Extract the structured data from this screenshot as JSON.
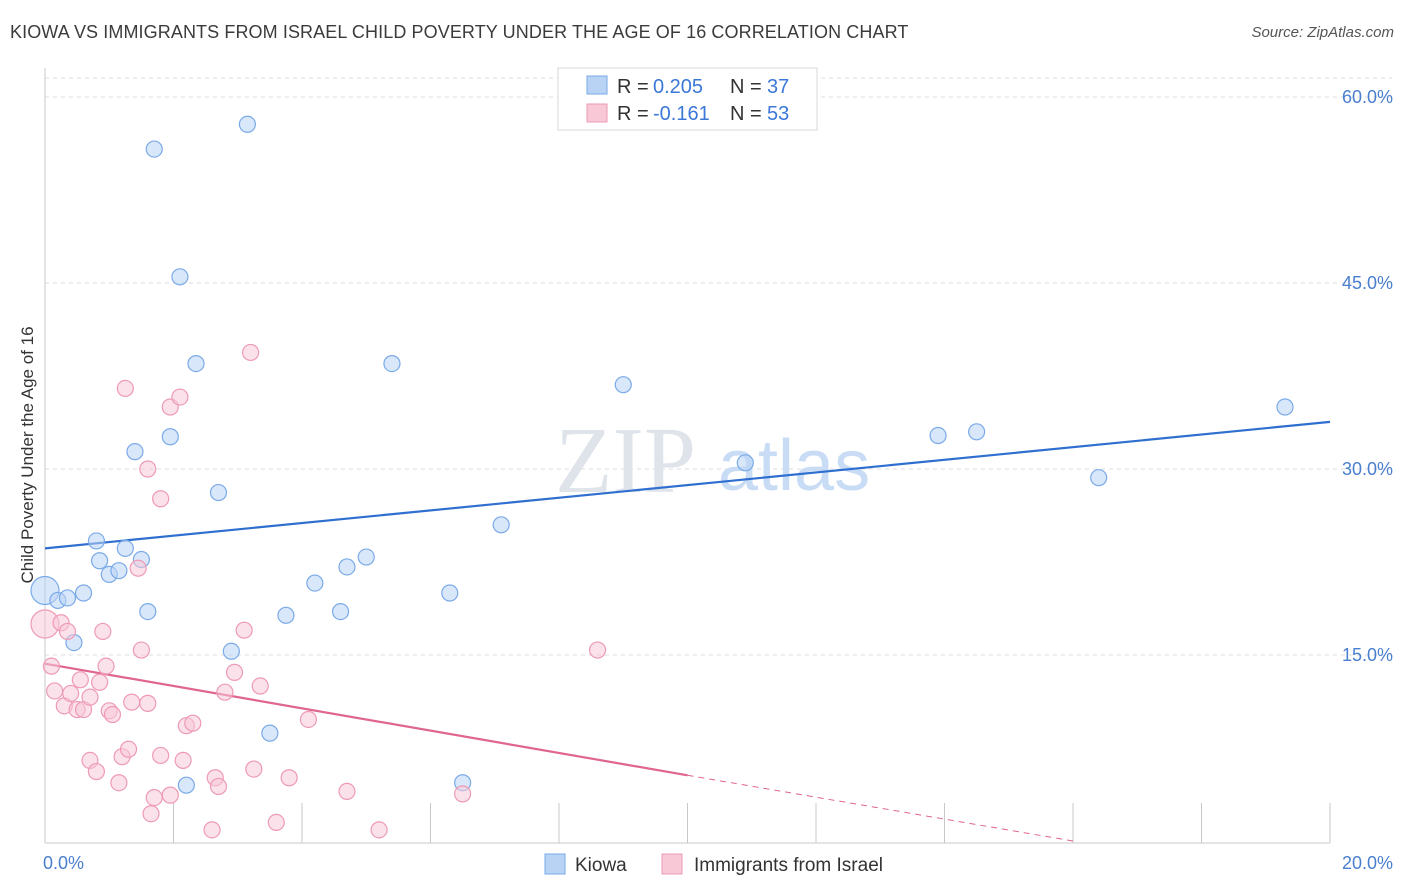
{
  "title": "KIOWA VS IMMIGRANTS FROM ISRAEL CHILD POVERTY UNDER THE AGE OF 16 CORRELATION CHART",
  "source": "Source: ZipAtlas.com",
  "watermark": {
    "zip": "ZIP",
    "atlas": "atlas"
  },
  "legend": {
    "r_label": "R =",
    "n_label": "N =",
    "series": [
      {
        "r": "0.205",
        "n": "37"
      },
      {
        "r": "-0.161",
        "n": "53"
      }
    ]
  },
  "chart_data": {
    "type": "scatter",
    "title": "KIOWA VS IMMIGRANTS FROM ISRAEL CHILD POVERTY UNDER THE AGE OF 16 CORRELATION CHART",
    "xlabel": "",
    "ylabel": "Child Poverty Under the Age of 16",
    "xlim": [
      0,
      20
    ],
    "ylim": [
      0,
      62
    ],
    "x_tick_labels": [
      "0.0%",
      "20.0%"
    ],
    "y_ticks": [
      15,
      30,
      45,
      60
    ],
    "y_tick_labels": [
      "15.0%",
      "30.0%",
      "45.0%",
      "60.0%"
    ],
    "grid": true,
    "legend_placement": "top-center",
    "series": [
      {
        "name": "Kiowa",
        "color": "#7aaae8",
        "fill": "#b9d3f5",
        "r": 0.205,
        "n": 37,
        "trend": {
          "x0": 0,
          "y0": 23.6,
          "x1": 20,
          "y1": 33.8
        },
        "points": [
          [
            0.0,
            20.2
          ],
          [
            0.2,
            19.4
          ],
          [
            0.35,
            19.6
          ],
          [
            0.45,
            16.0
          ],
          [
            0.6,
            20.0
          ],
          [
            0.8,
            24.2
          ],
          [
            0.85,
            22.6
          ],
          [
            1.0,
            21.5
          ],
          [
            1.15,
            21.8
          ],
          [
            1.25,
            23.6
          ],
          [
            1.4,
            31.4
          ],
          [
            1.5,
            22.7
          ],
          [
            1.6,
            18.5
          ],
          [
            1.7,
            55.8
          ],
          [
            1.95,
            32.6
          ],
          [
            2.1,
            45.5
          ],
          [
            2.35,
            38.5
          ],
          [
            2.7,
            28.1
          ],
          [
            2.9,
            15.3
          ],
          [
            3.15,
            57.8
          ],
          [
            3.5,
            8.7
          ],
          [
            3.75,
            18.2
          ],
          [
            4.2,
            20.8
          ],
          [
            4.6,
            18.5
          ],
          [
            4.7,
            22.1
          ],
          [
            5.0,
            22.9
          ],
          [
            5.4,
            38.5
          ],
          [
            6.3,
            20.0
          ],
          [
            7.1,
            25.5
          ],
          [
            9.0,
            36.8
          ],
          [
            10.9,
            30.5
          ],
          [
            13.9,
            32.7
          ],
          [
            14.5,
            33.0
          ],
          [
            16.4,
            29.3
          ],
          [
            19.3,
            35.0
          ],
          [
            2.2,
            4.5
          ],
          [
            6.5,
            4.7
          ]
        ]
      },
      {
        "name": "Immigrants from Israel",
        "color": "#ee9ab5",
        "fill": "#f8c8d7",
        "r": -0.161,
        "n": 53,
        "trend": {
          "x0": 0,
          "y0": 14.3,
          "x1": 10.0,
          "y1": 5.3,
          "dash_x1": 16.0,
          "dash_y1": 0.0
        },
        "points": [
          [
            0.0,
            17.5
          ],
          [
            0.1,
            14.1
          ],
          [
            0.15,
            12.1
          ],
          [
            0.25,
            17.6
          ],
          [
            0.3,
            10.9
          ],
          [
            0.35,
            16.9
          ],
          [
            0.4,
            11.9
          ],
          [
            0.5,
            10.6
          ],
          [
            0.55,
            13.0
          ],
          [
            0.6,
            10.6
          ],
          [
            0.7,
            11.6
          ],
          [
            0.7,
            6.5
          ],
          [
            0.8,
            5.6
          ],
          [
            0.85,
            12.8
          ],
          [
            0.9,
            16.9
          ],
          [
            0.95,
            14.1
          ],
          [
            1.0,
            10.5
          ],
          [
            1.05,
            10.2
          ],
          [
            1.15,
            4.7
          ],
          [
            1.2,
            6.8
          ],
          [
            1.25,
            36.5
          ],
          [
            1.3,
            7.4
          ],
          [
            1.35,
            11.2
          ],
          [
            1.45,
            22.0
          ],
          [
            1.5,
            15.4
          ],
          [
            1.6,
            30.0
          ],
          [
            1.6,
            11.1
          ],
          [
            1.65,
            2.2
          ],
          [
            1.7,
            3.5
          ],
          [
            1.8,
            27.6
          ],
          [
            1.8,
            6.9
          ],
          [
            1.95,
            35.0
          ],
          [
            1.95,
            3.7
          ],
          [
            2.1,
            35.8
          ],
          [
            2.15,
            6.5
          ],
          [
            2.2,
            9.3
          ],
          [
            2.3,
            9.5
          ],
          [
            2.6,
            0.9
          ],
          [
            2.65,
            5.1
          ],
          [
            2.7,
            4.4
          ],
          [
            2.8,
            12.0
          ],
          [
            2.95,
            13.6
          ],
          [
            3.1,
            17.0
          ],
          [
            3.2,
            39.4
          ],
          [
            3.25,
            5.8
          ],
          [
            3.35,
            12.5
          ],
          [
            3.6,
            1.5
          ],
          [
            3.8,
            5.1
          ],
          [
            4.1,
            9.8
          ],
          [
            4.7,
            4.0
          ],
          [
            5.2,
            0.9
          ],
          [
            6.5,
            3.8
          ],
          [
            8.6,
            15.4
          ]
        ]
      }
    ]
  }
}
